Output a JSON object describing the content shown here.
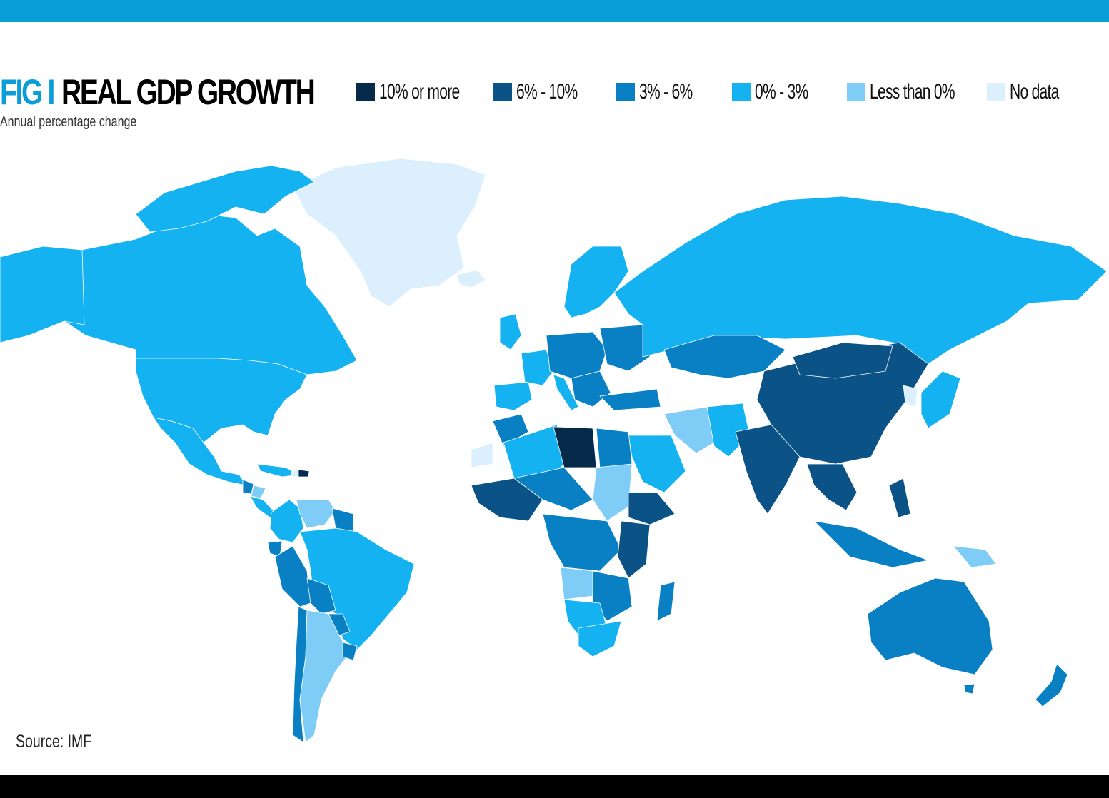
{
  "header": {
    "title_prefix": "FIG I",
    "title_main": "REAL GDP GROWTH",
    "subtitle": "Annual percentage change"
  },
  "legend": [
    {
      "label": "10% or more",
      "color": "#062a4a"
    },
    {
      "label": "6% - 10%",
      "color": "#0b5286"
    },
    {
      "label": "3% - 6%",
      "color": "#0a80c4"
    },
    {
      "label": "0% - 3%",
      "color": "#14b2f0"
    },
    {
      "label": "Less than 0%",
      "color": "#7fcdf7"
    },
    {
      "label": "No data",
      "color": "#dceffd"
    }
  ],
  "colors": {
    "brand_blue": "#0a9ed9",
    "black": "#000000"
  },
  "source": "Source: IMF"
}
